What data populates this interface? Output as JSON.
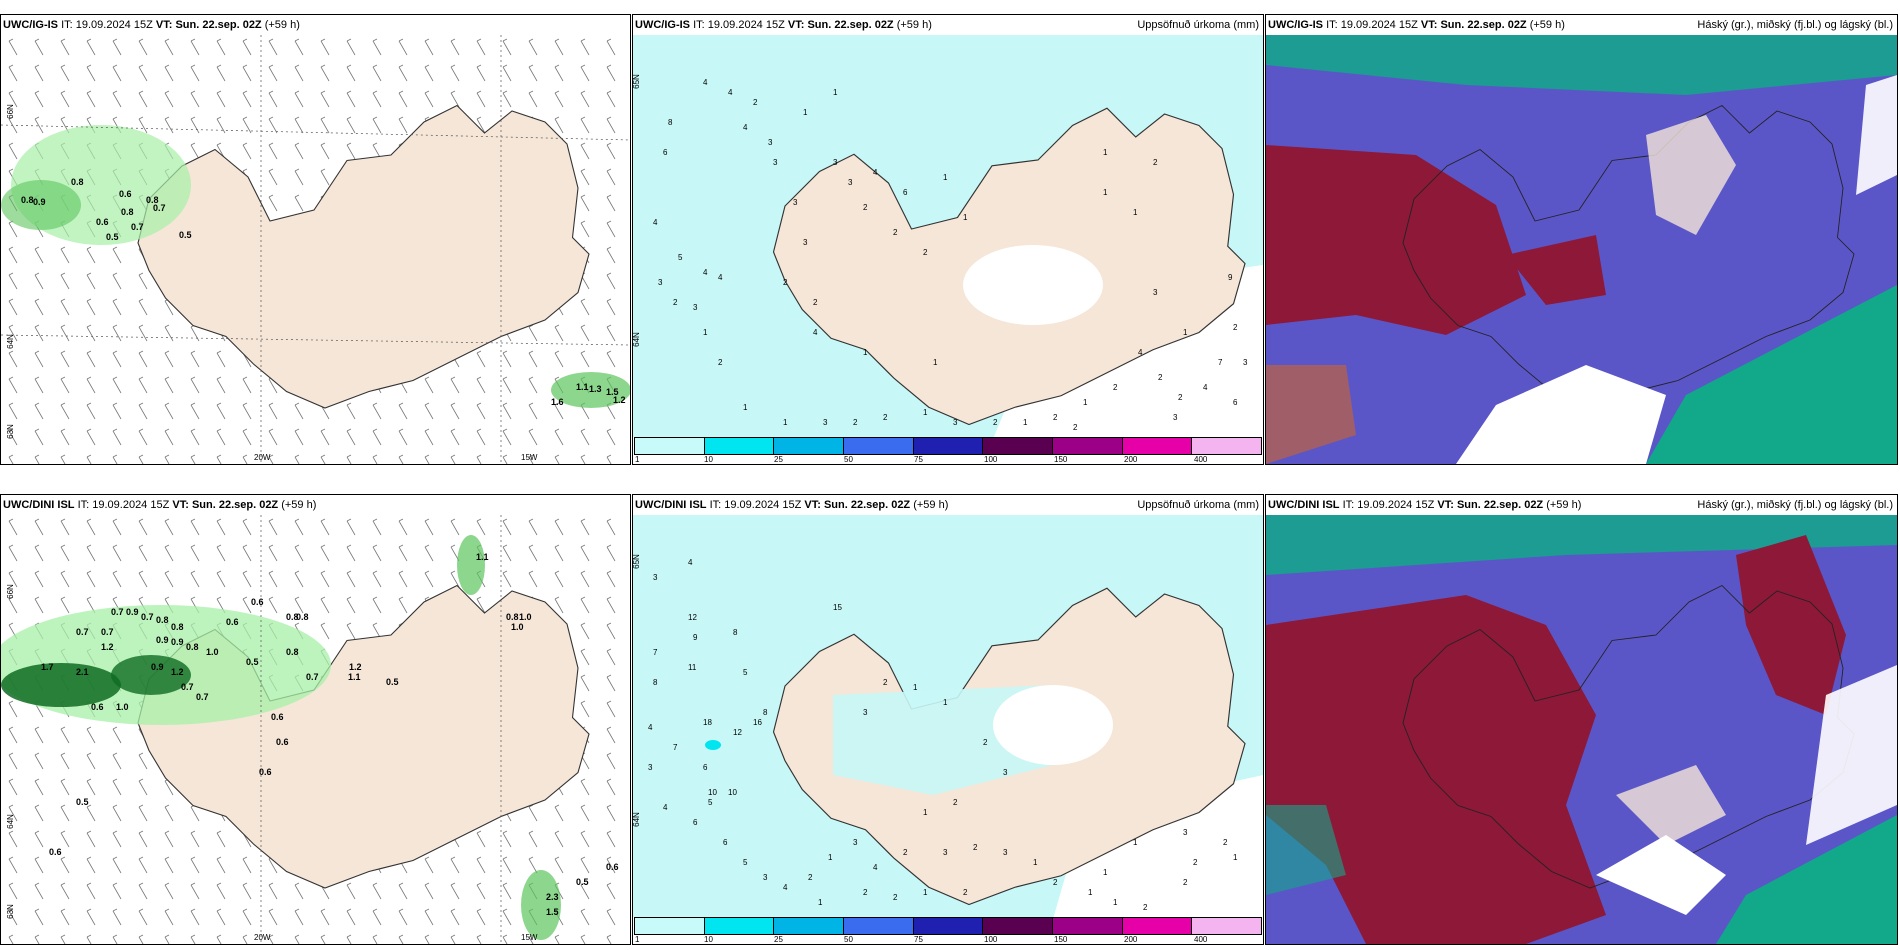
{
  "colors": {
    "land": "#f5e6d8",
    "sea": "#ffffff",
    "coast": "#333333",
    "precip_light": "#a7f0a7",
    "precip_mid": "#5dc55d",
    "precip_dark": "#0f6b22",
    "cyan_fill": "#c8f7f7",
    "cloud_high": "#12a88a",
    "cloud_mid": "#5b56c8",
    "cloud_low": "#8d1838"
  },
  "row1": {
    "wind": {
      "model": "UWC/IG-IS",
      "it_label": "IT:",
      "it_value": "19.09.2024 15Z",
      "vt_label": "VT:",
      "vt_value": "Sun. 22.sep. 02Z",
      "lead": "(+59 h)",
      "lat_labels": [
        "66N",
        "64N",
        "63N"
      ],
      "lon_labels": [
        "20W",
        "15W"
      ],
      "values": [
        "0.8",
        "0.8",
        "0.9",
        "0.6",
        "0.8",
        "0.8",
        "0.7",
        "0.6",
        "0.5",
        "0.7",
        "0.5",
        "1.1",
        "1.3",
        "1.5",
        "1.6",
        "1.2"
      ]
    },
    "precip": {
      "model": "UWC/IG-IS",
      "it_label": "IT:",
      "it_value": "19.09.2024 15Z",
      "vt_label": "VT:",
      "vt_value": "Sun. 22.sep. 02Z",
      "lead": "(+59 h)",
      "title_right": "Uppsöfnuð úrkoma (mm)",
      "lat_labels": [
        "65N",
        "64N"
      ],
      "values": [
        "4",
        "8",
        "6",
        "4",
        "5",
        "4",
        "3",
        "4",
        "2",
        "3",
        "4",
        "4",
        "3",
        "3",
        "3",
        "2",
        "4",
        "1",
        "2",
        "1",
        "1",
        "3",
        "2",
        "2",
        "1",
        "3",
        "2",
        "1",
        "2",
        "2",
        "6",
        "4",
        "3",
        "3",
        "2",
        "1",
        "1",
        "2",
        "2",
        "2",
        "1",
        "1",
        "1",
        "2",
        "1",
        "1",
        "1",
        "2",
        "7",
        "3",
        "4",
        "6",
        "9",
        "4",
        "2",
        "2",
        "3",
        "1",
        "2",
        "3",
        "1",
        "1",
        "2",
        "3"
      ]
    },
    "clouds": {
      "model": "UWC/IG-IS",
      "it_label": "IT:",
      "it_value": "19.09.2024 15Z",
      "vt_label": "VT:",
      "vt_value": "Sun. 22.sep. 02Z",
      "lead": "(+59 h)",
      "title_right": "Háský (gr.), miðský (fj.bl.) og lágský (bl.)"
    }
  },
  "row2": {
    "wind": {
      "model": "UWC/DINI ISL",
      "it_label": "IT:",
      "it_value": "19.09.2024 15Z",
      "vt_label": "VT:",
      "vt_value": "Sun. 22.sep. 02Z",
      "lead": "(+59 h)",
      "lat_labels": [
        "66N",
        "64N",
        "63N"
      ],
      "lon_labels": [
        "20W",
        "15W"
      ],
      "values": [
        "0.7",
        "0.9",
        "0.7",
        "0.8",
        "0.8",
        "0.6",
        "0.6",
        "0.8",
        "0.8",
        "0.7",
        "0.7",
        "1.2",
        "0.9",
        "0.9",
        "0.8",
        "1.0",
        "0.5",
        "0.8",
        "1.7",
        "2.1",
        "0.9",
        "1.2",
        "0.7",
        "0.7",
        "1.0",
        "0.5",
        "0.7",
        "0.6",
        "0.6",
        "0.5",
        "0.6",
        "0.6",
        "0.5",
        "1.2",
        "1.1",
        "0.6",
        "0.8",
        "1.0",
        "1.0",
        "1.1",
        "0.6",
        "2.3",
        "1.5"
      ]
    },
    "precip": {
      "model": "UWC/DINI ISL",
      "it_label": "IT:",
      "it_value": "19.09.2024 15Z",
      "vt_label": "VT:",
      "vt_value": "Sun. 22.sep. 02Z",
      "lead": "(+59 h)",
      "title_right": "Uppsöfnuð úrkoma (mm)",
      "lat_labels": [
        "65N",
        "64N"
      ],
      "values": [
        "3",
        "4",
        "7",
        "8",
        "9",
        "12",
        "11",
        "8",
        "5",
        "7",
        "4",
        "6",
        "10",
        "10",
        "15",
        "16",
        "18",
        "12",
        "8",
        "3",
        "1",
        "2",
        "2",
        "1",
        "2",
        "3",
        "2",
        "3",
        "1",
        "2",
        "1",
        "1",
        "3",
        "2",
        "1",
        "2",
        "2",
        "1",
        "1",
        "2",
        "2",
        "1",
        "1",
        "3",
        "2",
        "3",
        "5",
        "6",
        "4",
        "6",
        "5",
        "3",
        "4",
        "2",
        "1",
        "3",
        "4",
        "2",
        "1",
        "2"
      ]
    },
    "clouds": {
      "model": "UWC/DINI ISL",
      "it_label": "IT:",
      "it_value": "19.09.2024 15Z",
      "vt_label": "VT:",
      "vt_value": "Sun. 22.sep. 02Z",
      "lead": "(+59 h)",
      "title_right": "Háský (gr.), miðský (fj.bl.) og lágský (bl.)"
    }
  },
  "legend": {
    "ticks": [
      "1",
      "10",
      "25",
      "50",
      "75",
      "100",
      "150",
      "200",
      "400"
    ],
    "colors": [
      "#c8fafa",
      "#00e5ef",
      "#00b4e6",
      "#3a6cf0",
      "#2020b0",
      "#5a0050",
      "#9b0086",
      "#e600a8",
      "#f4b4f0"
    ]
  }
}
